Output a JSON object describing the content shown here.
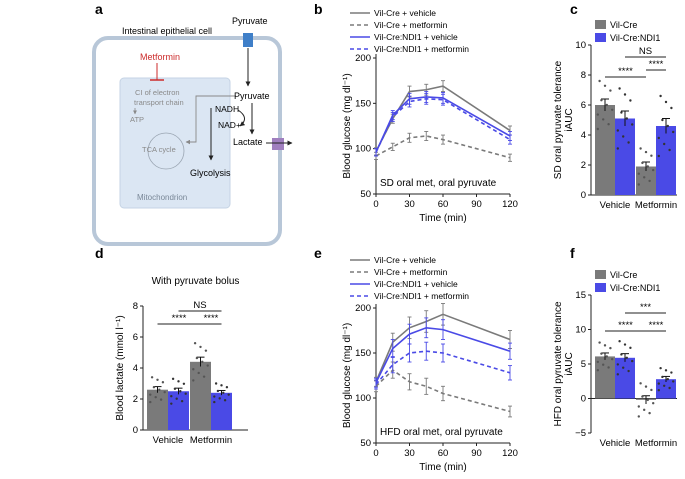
{
  "panel_labels": {
    "a": "a",
    "b": "b",
    "c": "c",
    "d": "d",
    "e": "e",
    "f": "f"
  },
  "schematic": {
    "cell_label": "Intestinal epithelial cell",
    "pyruvate_top": "Pyruvate",
    "metformin": "Metformin",
    "ci_line1": "CI of electron",
    "ci_line2": "transport chain",
    "atp": "ATP",
    "tca": "TCA cycle",
    "mito": "Mitochondrion",
    "pyruvate_mid": "Pyruvate",
    "nadh": "NADH",
    "nadp": "NAD+",
    "lactate": "Lactate",
    "glycolysis": "Glycolysis"
  },
  "colors": {
    "grey": "#7a7a7a",
    "blue": "#4a4ae6",
    "schematic_bg": "#dbe6f3",
    "cell_border": "#b8c7d8",
    "metformin_red": "#cc2b2b",
    "channel_blue": "#3f7fc8",
    "channel_purple": "#a07fbf"
  },
  "chart_data": [
    {
      "id": "b",
      "type": "line",
      "xlabel": "Time (min)",
      "ylabel": "Blood glucose (mg dl⁻¹)",
      "xlim": [
        0,
        120
      ],
      "ylim": [
        50,
        200
      ],
      "xticks": [
        "0",
        "30",
        "60",
        "90",
        "120"
      ],
      "yticks": [
        "50",
        "100",
        "150",
        "200"
      ],
      "annotation": "SD oral met, oral pyruvate",
      "x": [
        0,
        15,
        30,
        45,
        60,
        120
      ],
      "series": [
        {
          "name": "Vil-Cre + vehicle",
          "style": "solid",
          "color": "#7a7a7a",
          "values": [
            97,
            133,
            163,
            165,
            169,
            120
          ],
          "err": [
            4,
            5,
            6,
            6,
            6,
            5
          ]
        },
        {
          "name": "Vil-Cre + metformin",
          "style": "dashed",
          "color": "#7a7a7a",
          "values": [
            92,
            102,
            112,
            114,
            110,
            90
          ],
          "err": [
            4,
            4,
            5,
            5,
            5,
            4
          ]
        },
        {
          "name": "Vil-Cre:NDI1 + vehicle",
          "style": "solid",
          "color": "#4a4ae6",
          "values": [
            96,
            137,
            155,
            157,
            156,
            114
          ],
          "err": [
            4,
            5,
            6,
            6,
            6,
            5
          ]
        },
        {
          "name": "Vil-Cre:NDI1 + metformin",
          "style": "dashed",
          "color": "#4a4ae6",
          "values": [
            96,
            135,
            152,
            155,
            154,
            110
          ],
          "err": [
            4,
            5,
            6,
            6,
            6,
            5
          ]
        }
      ]
    },
    {
      "id": "e",
      "type": "line",
      "xlabel": "Time (min)",
      "ylabel": "Blood glucose (mg dl⁻¹)",
      "xlim": [
        0,
        120
      ],
      "ylim": [
        50,
        200
      ],
      "xticks": [
        "0",
        "30",
        "60",
        "90",
        "120"
      ],
      "yticks": [
        "50",
        "100",
        "150",
        "200"
      ],
      "annotation": "HFD oral met, oral pyruvate",
      "x": [
        0,
        15,
        30,
        45,
        60,
        120
      ],
      "series": [
        {
          "name": "Vil-Cre + vehicle",
          "style": "solid",
          "color": "#7a7a7a",
          "values": [
            118,
            162,
            178,
            185,
            193,
            165
          ],
          "err": [
            5,
            10,
            12,
            12,
            12,
            10
          ]
        },
        {
          "name": "Vil-Cre + metformin",
          "style": "dashed",
          "color": "#7a7a7a",
          "values": [
            113,
            131,
            118,
            113,
            105,
            85
          ],
          "err": [
            6,
            9,
            9,
            9,
            8,
            6
          ]
        },
        {
          "name": "Vil-Cre:NDI1 + vehicle",
          "style": "solid",
          "color": "#4a4ae6",
          "values": [
            117,
            155,
            171,
            178,
            176,
            152
          ],
          "err": [
            5,
            10,
            11,
            11,
            11,
            9
          ]
        },
        {
          "name": "Vil-Cre:NDI1 + metformin",
          "style": "dashed",
          "color": "#4a4ae6",
          "values": [
            115,
            137,
            150,
            152,
            150,
            128
          ],
          "err": [
            5,
            9,
            10,
            10,
            10,
            8
          ]
        }
      ]
    },
    {
      "id": "c",
      "type": "bar",
      "ylabel_line1": "SD oral pyruvate tolerance",
      "ylabel_line2": "iAUC",
      "ylim": [
        0,
        10
      ],
      "yticks": [
        "0",
        "2",
        "4",
        "6",
        "8",
        "10"
      ],
      "categories": [
        "Vehicle",
        "Metformin"
      ],
      "series": [
        {
          "name": "Vil-Cre",
          "color": "#7a7a7a",
          "values": [
            6.0,
            1.9
          ],
          "err": [
            0.4,
            0.3
          ]
        },
        {
          "name": "Vil-Cre:NDI1",
          "color": "#4a4ae6",
          "values": [
            5.1,
            4.6
          ],
          "err": [
            0.5,
            0.5
          ]
        }
      ],
      "sig": [
        {
          "from": [
            1,
            0
          ],
          "to": [
            1,
            1
          ],
          "label": "****"
        },
        {
          "from": [
            0,
            0
          ],
          "to": [
            1,
            0
          ],
          "label": "****"
        },
        {
          "from": [
            0,
            1
          ],
          "to": [
            1,
            1
          ],
          "label": "NS"
        }
      ]
    },
    {
      "id": "d",
      "type": "bar",
      "title": "With pyruvate bolus",
      "ylabel": "Blood lactate (mmol l⁻¹)",
      "ylim": [
        0,
        8
      ],
      "yticks": [
        "0",
        "2",
        "4",
        "6",
        "8"
      ],
      "categories": [
        "Vehicle",
        "Metformin"
      ],
      "series": [
        {
          "name": "Vil-Cre",
          "color": "#7a7a7a",
          "values": [
            2.6,
            4.4
          ],
          "err": [
            0.2,
            0.3
          ]
        },
        {
          "name": "Vil-Cre:NDI1",
          "color": "#4a4ae6",
          "values": [
            2.5,
            2.4
          ],
          "err": [
            0.2,
            0.15
          ]
        }
      ],
      "sig": [
        {
          "from": [
            0,
            0
          ],
          "to": [
            1,
            0
          ],
          "label": "****"
        },
        {
          "from": [
            1,
            0
          ],
          "to": [
            1,
            1
          ],
          "label": "****"
        },
        {
          "from": [
            0,
            1
          ],
          "to": [
            1,
            1
          ],
          "label": "NS"
        }
      ]
    },
    {
      "id": "f",
      "type": "bar",
      "ylabel_line1": "HFD oral pyruvate tolerance",
      "ylabel_line2": "iAUC",
      "ylim": [
        -5,
        15
      ],
      "yticks": [
        "−5",
        "0",
        "5",
        "10",
        "15"
      ],
      "categories": [
        "Vehicle",
        "Metformin"
      ],
      "series": [
        {
          "name": "Vil-Cre",
          "color": "#7a7a7a",
          "values": [
            6.1,
            -0.2
          ],
          "err": [
            0.5,
            0.6
          ]
        },
        {
          "name": "Vil-Cre:NDI1",
          "color": "#4a4ae6",
          "values": [
            5.9,
            2.8
          ],
          "err": [
            0.6,
            0.4
          ]
        }
      ],
      "sig": [
        {
          "from": [
            0,
            0
          ],
          "to": [
            1,
            0
          ],
          "label": "****"
        },
        {
          "from": [
            1,
            0
          ],
          "to": [
            1,
            1
          ],
          "label": "****"
        },
        {
          "from": [
            0,
            1
          ],
          "to": [
            1,
            1
          ],
          "label": "***"
        }
      ]
    }
  ]
}
